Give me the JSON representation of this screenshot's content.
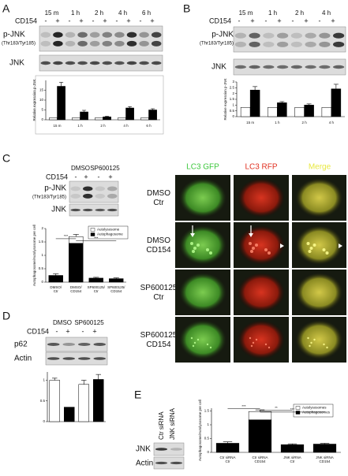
{
  "panels": {
    "A": {
      "letter": "A",
      "treatment": "CD154",
      "times": [
        "15 m",
        "1 h",
        "2 h",
        "4 h",
        "6 h"
      ],
      "signs": [
        "-",
        "+",
        "-",
        "+",
        "-",
        "+",
        "-",
        "+",
        "-",
        "+"
      ],
      "blot_labels": [
        "p-JNK",
        "(Thr183/Tyr185)",
        "JNK"
      ]
    },
    "B": {
      "letter": "B",
      "treatment": "CD154",
      "times": [
        "15 m",
        "1 h",
        "2 h",
        "4 h"
      ],
      "signs": [
        "-",
        "+",
        "-",
        "+",
        "-",
        "+",
        "-",
        "+"
      ],
      "blot_labels": [
        "p-JNK",
        "(Thr183/Tyr185)",
        "JNK"
      ]
    },
    "C": {
      "letter": "C",
      "treatment": "CD154",
      "groups": [
        "DMSO",
        "SP600125"
      ],
      "signs": [
        "-",
        "+",
        "-",
        "+"
      ],
      "blot_labels": [
        "p-JNK",
        "(Thr183/Tyr185)",
        "JNK"
      ],
      "microscopy": {
        "columns": [
          "LC3 GFP",
          "LC3 RFP",
          "Merge"
        ],
        "rows": [
          "DMSO Ctr",
          "DMSO CD154",
          "SP600125 Ctr",
          "SP600125 CD154"
        ]
      }
    },
    "D": {
      "letter": "D",
      "treatment": "CD154",
      "groups": [
        "DMSO",
        "SP600125"
      ],
      "signs": [
        "-",
        "+",
        "-",
        "+"
      ],
      "blot_labels": [
        "p62",
        "Actin"
      ]
    },
    "E": {
      "letter": "E",
      "lanes": [
        "Ctr siRNA",
        "JNK siRNA"
      ],
      "blot_labels": [
        "JNK",
        "Actin"
      ]
    }
  },
  "chart_data": [
    {
      "type": "bar",
      "y_label": "Relative expression p-JNK",
      "categories": [
        "15 m",
        "1 h",
        "2 h",
        "4 h",
        "6 h"
      ],
      "series": [
        {
          "color": "#ffffff",
          "values": [
            1,
            1,
            1,
            1,
            1
          ]
        },
        {
          "color": "#000000",
          "values": [
            17,
            4,
            1.5,
            6,
            5
          ],
          "errors": [
            2,
            0.8,
            0.3,
            0.7,
            0.6
          ]
        }
      ],
      "ylim": [
        0,
        20
      ],
      "yticks": [
        0,
        5,
        10,
        15
      ]
    },
    {
      "type": "bar",
      "y_label": "Relative expression p-JNK",
      "categories": [
        "15 m",
        "1 h",
        "2 h",
        "4 h"
      ],
      "series": [
        {
          "color": "#ffffff",
          "values": [
            0.8,
            0.8,
            0.8,
            0.8
          ]
        },
        {
          "color": "#000000",
          "values": [
            2.3,
            1.2,
            1.0,
            2.4
          ],
          "errors": [
            0.3,
            0.1,
            0.1,
            0.4
          ]
        }
      ],
      "ylim": [
        0,
        3
      ],
      "yticks": [
        0,
        0.5,
        1,
        1.5,
        2,
        2.5,
        3
      ]
    },
    {
      "type": "stacked_bar",
      "y_label": "Autophagosome/Autolysosome per cell",
      "categories": [
        "DMSO/ Ctr",
        "DMSO/ CD154",
        "SP600125/ Ctr",
        "SP600125/ CD154"
      ],
      "series": [
        {
          "name": "Autophagosome",
          "color": "#000000",
          "values": [
            0.25,
            1.45,
            0.15,
            0.13
          ]
        },
        {
          "name": "Autolysosome",
          "color": "#ffffff",
          "values": [
            0,
            0.25,
            0,
            0
          ],
          "errors": [
            0.06,
            0.08,
            0.03,
            0.03
          ]
        }
      ],
      "annotations": [
        "***",
        "***"
      ],
      "ylim": [
        0,
        2
      ],
      "yticks": [
        0,
        0.5,
        1,
        1.5,
        2
      ]
    },
    {
      "type": "bar",
      "categories": [
        null,
        null,
        null,
        null
      ],
      "values": [
        1.0,
        0.35,
        0.9,
        1.02
      ],
      "errors": [
        0.05,
        0,
        0.1,
        0.12
      ],
      "colors": [
        "#ffffff",
        "#000000",
        "#ffffff",
        "#000000"
      ],
      "ylim": [
        0,
        1.2
      ],
      "yticks": [
        0,
        0.5,
        1
      ]
    },
    {
      "type": "stacked_bar",
      "y_label": "Autophagosome/Autolysosome per cell",
      "categories": [
        "Ctr siRNA Ctr",
        "Ctr siRNA CD154",
        "JNK siRNA Ctr",
        "JNK siRNA CD154"
      ],
      "series": [
        {
          "name": "Autophagosomes",
          "color": "#000000",
          "values": [
            0.33,
            1.18,
            0.28,
            0.3
          ]
        },
        {
          "name": "Autolysosomes",
          "color": "#ffffff",
          "values": [
            0,
            0.3,
            0,
            0
          ],
          "errors": [
            0.05,
            0.06,
            0.03,
            0.03
          ]
        }
      ],
      "annotations": [
        "***",
        "**",
        "***"
      ],
      "ylim": [
        0,
        1.6
      ],
      "yticks": [
        0,
        0.5,
        1,
        1.5
      ]
    }
  ]
}
